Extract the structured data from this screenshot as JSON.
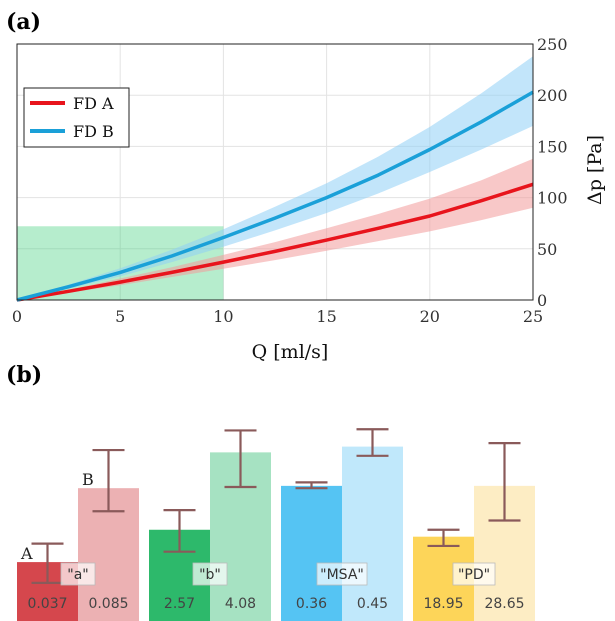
{
  "chart_data": [
    {
      "panel_label": "(a)",
      "type": "line",
      "xlabel": "Q [ml/s]",
      "ylabel": "Δp [Pa]",
      "xlim": [
        0,
        25
      ],
      "ylim": [
        0,
        250
      ],
      "xticks": [
        0,
        5,
        10,
        15,
        20,
        25
      ],
      "yticks": [
        0,
        50,
        100,
        150,
        200,
        250
      ],
      "grid": true,
      "legend_position": "top-left",
      "highlight_region": {
        "x": [
          0,
          10
        ],
        "y": [
          0,
          72
        ],
        "color": "#2ecc71"
      },
      "series": [
        {
          "name": "FD A",
          "color": "#e8141c",
          "band_color": "#f29a9a",
          "x": [
            0,
            2.5,
            5,
            7.5,
            10,
            12.5,
            15,
            17.5,
            20,
            22.5,
            25
          ],
          "y": [
            0,
            8.5,
            17.5,
            27,
            37,
            47.5,
            58.5,
            70,
            82,
            97,
            113
          ],
          "y_low": [
            0,
            7,
            14.5,
            22.5,
            30.5,
            39,
            48,
            57.5,
            67,
            78,
            90
          ],
          "y_high": [
            0,
            10,
            21,
            32,
            44,
            56.5,
            70,
            84,
            99,
            117,
            138
          ]
        },
        {
          "name": "FD B",
          "color": "#1aa0d8",
          "band_color": "#8fd0f5",
          "x": [
            0,
            2.5,
            5,
            7.5,
            10,
            12.5,
            15,
            17.5,
            20,
            22.5,
            25
          ],
          "y": [
            0,
            13,
            27,
            43,
            61,
            80,
            100,
            122,
            147,
            174,
            203
          ],
          "y_low": [
            0,
            11,
            23,
            37,
            52,
            68,
            85,
            104,
            125,
            147,
            170
          ],
          "y_high": [
            0,
            15,
            31,
            49,
            69,
            91,
            114,
            140,
            169,
            202,
            238
          ]
        }
      ]
    },
    {
      "panel_label": "(b)",
      "type": "bar",
      "bar_letters": [
        "A",
        "B"
      ],
      "groups": [
        {
          "label": "\"a\"",
          "colors": [
            "#d5474d",
            "#ecb1b3"
          ],
          "values": [
            "0.037",
            "0.085"
          ],
          "levels": [
            0.255,
            0.575
          ],
          "err_low": [
            0.165,
            0.475
          ],
          "err_high": [
            0.335,
            0.74
          ]
        },
        {
          "label": "\"b\"",
          "colors": [
            "#2db96b",
            "#a6e2c2"
          ],
          "values": [
            "2.57",
            "4.08"
          ],
          "levels": [
            0.395,
            0.73
          ],
          "err_low": [
            0.3,
            0.58
          ],
          "err_high": [
            0.48,
            0.825
          ]
        },
        {
          "label": "\"MSA\"",
          "colors": [
            "#55c4f3",
            "#c0e8fb"
          ],
          "values": [
            "0.36",
            "0.45"
          ],
          "levels": [
            0.585,
            0.755
          ],
          "err_low": [
            0.575,
            0.715
          ],
          "err_high": [
            0.6,
            0.83
          ]
        },
        {
          "label": "\"PD\"",
          "colors": [
            "#fdd559",
            "#fdedc4"
          ],
          "values": [
            "18.95",
            "28.65"
          ],
          "levels": [
            0.365,
            0.585
          ],
          "err_low": [
            0.325,
            0.435
          ],
          "err_high": [
            0.395,
            0.77
          ]
        }
      ],
      "errorbar_color": "#8a5a5a"
    }
  ]
}
